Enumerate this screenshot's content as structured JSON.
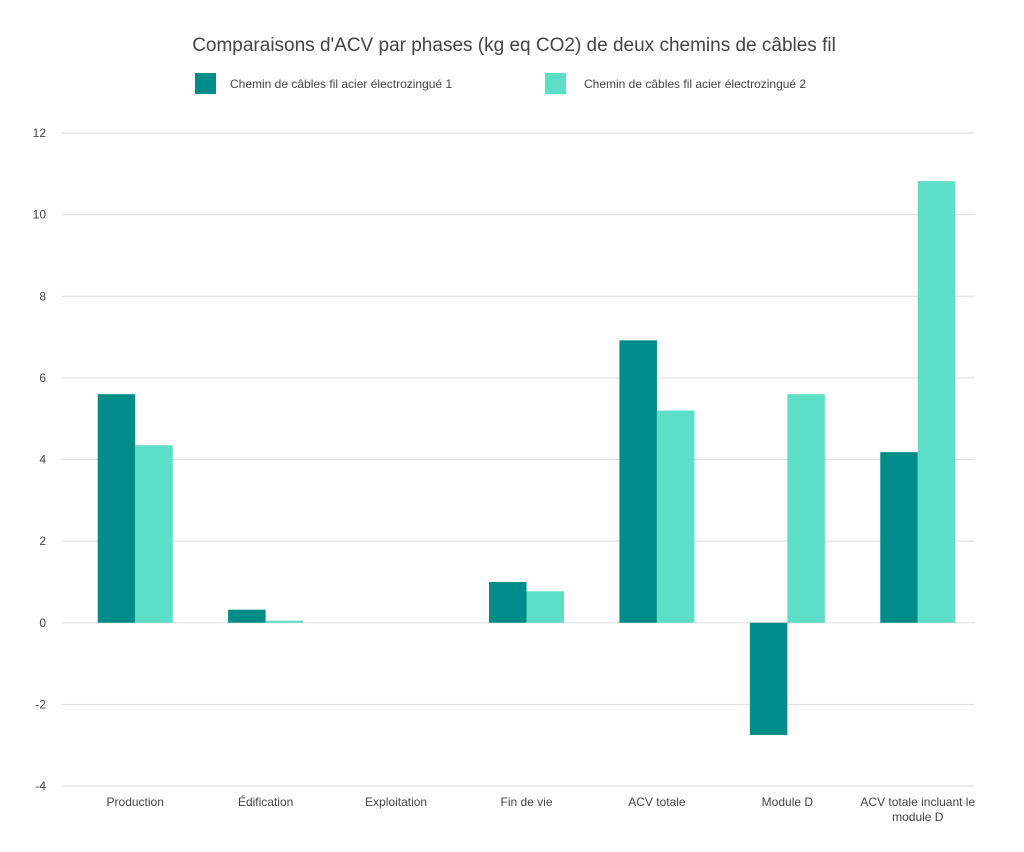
{
  "chart_data": {
    "type": "bar",
    "title": "Comparaisons d'ACV par phases (kg eq CO2) de deux chemins de câbles fil",
    "categories": [
      [
        "Production"
      ],
      [
        "Édification"
      ],
      [
        "Exploitation"
      ],
      [
        "Fin de vie"
      ],
      [
        "ACV totale"
      ],
      [
        "Module D"
      ],
      [
        "ACV totale incluant le",
        "module D"
      ]
    ],
    "series": [
      {
        "name": "Chemin de câbles fil acier électrozingué 1",
        "color": "#008C88",
        "values": [
          5.6,
          0.32,
          0,
          1.0,
          6.92,
          -2.75,
          4.18
        ]
      },
      {
        "name": "Chemin de câbles fil acier électrozingué 2",
        "color": "#5DDEC6",
        "values": [
          4.35,
          0.05,
          0,
          0.77,
          5.2,
          5.6,
          10.82
        ]
      }
    ],
    "ylim": [
      -4,
      12
    ],
    "yticks": [
      -4,
      -2,
      0,
      2,
      4,
      6,
      8,
      10,
      12
    ],
    "xlabel": "",
    "ylabel": "",
    "grid": true,
    "legend_position": "top-center"
  }
}
